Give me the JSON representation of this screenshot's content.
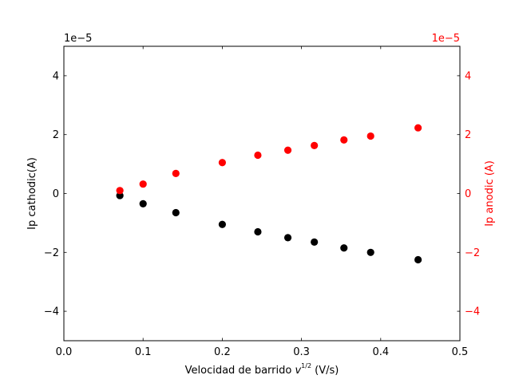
{
  "chart_data": {
    "type": "scatter",
    "xlabel_prefix": "Velocidad de barrido ",
    "xlabel_var": "v",
    "xlabel_exp": "1/2",
    "xlabel_suffix": " (V/s)",
    "ylabel_left": "Ip cathodic(A)",
    "ylabel_right": "Ip anodic (A)",
    "offset_left": "1e−5",
    "offset_right": "1e−5",
    "xlim": [
      0.0,
      0.5
    ],
    "ylim": [
      -5,
      5
    ],
    "y_scale_note": "values in units of 1e-5 A",
    "xticks": [
      "0.0",
      "0.1",
      "0.2",
      "0.3",
      "0.4",
      "0.5"
    ],
    "yticks_left": [
      "−4",
      "−2",
      "0",
      "2",
      "4"
    ],
    "yticks_right": [
      "−4",
      "−2",
      "0",
      "2",
      "4"
    ],
    "grid": false,
    "colors": {
      "cathodic": "#000000",
      "anodic": "#ff0000",
      "axis": "#000000"
    },
    "x": [
      0.0707,
      0.1,
      0.1414,
      0.2,
      0.2449,
      0.2828,
      0.3162,
      0.3536,
      0.3873,
      0.4472
    ],
    "series": [
      {
        "axis": "left",
        "color": "#000000",
        "values": [
          -0.07,
          -0.35,
          -0.65,
          -1.05,
          -1.3,
          -1.5,
          -1.65,
          -1.85,
          -2.0,
          -2.25
        ]
      },
      {
        "axis": "right",
        "color": "#ff0000",
        "values": [
          0.1,
          0.32,
          0.68,
          1.05,
          1.3,
          1.47,
          1.63,
          1.82,
          1.95,
          2.23
        ]
      }
    ]
  }
}
